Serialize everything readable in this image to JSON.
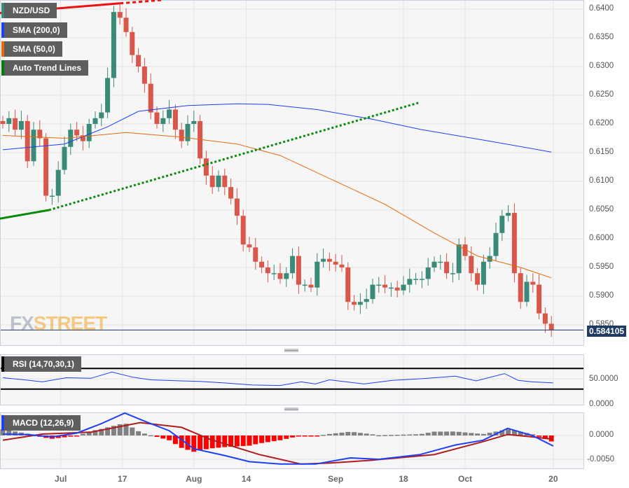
{
  "symbol_label": "NZD/USD",
  "legend": [
    {
      "label": "NZD/USD",
      "color": "#3a8a78"
    },
    {
      "label": "SMA (200,0)",
      "color": "#1f3ff5"
    },
    {
      "label": "SMA (50,0)",
      "color": "#e8680e"
    },
    {
      "label": "Auto Trend Lines",
      "color": "#0a7a0a"
    }
  ],
  "rsi_label": "RSI (14,70,30,1)",
  "macd_label": "MACD (12,26,9)",
  "logo": {
    "a": "FX",
    "b": "STREET"
  },
  "current_price": "0.584105",
  "price_axis": [
    "0.6400",
    "0.6350",
    "0.6300",
    "0.6250",
    "0.6200",
    "0.6150",
    "0.6100",
    "0.6050",
    "0.6000",
    "0.5950",
    "0.5900",
    "0.5850"
  ],
  "rsi_axis": [
    "50.0000",
    "0.0000"
  ],
  "macd_axis": [
    "0.0000",
    "-0.0050"
  ],
  "x_axis": [
    {
      "label": "Jul",
      "idx": 9.4
    },
    {
      "label": "17",
      "idx": 19.4
    },
    {
      "label": "Aug",
      "idx": 31
    },
    {
      "label": "14",
      "idx": 39.5
    },
    {
      "label": "Sep",
      "idx": 54
    },
    {
      "label": "18",
      "idx": 65
    },
    {
      "label": "Oct",
      "idx": 75
    },
    {
      "label": "20",
      "idx": 89.3
    }
  ],
  "colors": {
    "up": "#3a8a78",
    "down": "#d9574a",
    "sma200": "#1f3ff5",
    "sma50": "#e8680e",
    "rsi": "#1f3ff5",
    "macd": "#1f3ff5",
    "signal": "#b01c1c",
    "hist_pos": "#808080",
    "hist_neg": "#ff0000"
  },
  "chart_data": {
    "type": "candlestick",
    "closes": [
      0.62,
      0.621,
      0.619,
      0.6205,
      0.6135,
      0.619,
      0.6175,
      0.6075,
      0.6075,
      0.612,
      0.616,
      0.619,
      0.618,
      0.617,
      0.62,
      0.621,
      0.622,
      0.628,
      0.6395,
      0.6385,
      0.636,
      0.632,
      0.63,
      0.627,
      0.622,
      0.62,
      0.621,
      0.6225,
      0.619,
      0.617,
      0.62,
      0.6205,
      0.614,
      0.611,
      0.609,
      0.611,
      0.609,
      0.607,
      0.604,
      0.599,
      0.5985,
      0.596,
      0.595,
      0.594,
      0.594,
      0.593,
      0.594,
      0.597,
      0.592,
      0.592,
      0.5915,
      0.596,
      0.5965,
      0.596,
      0.5955,
      0.595,
      0.589,
      0.5885,
      0.589,
      0.5895,
      0.592,
      0.592,
      0.5915,
      0.5915,
      0.591,
      0.592,
      0.593,
      0.593,
      0.593,
      0.595,
      0.596,
      0.596,
      0.594,
      0.594,
      0.599,
      0.597,
      0.594,
      0.592,
      0.596,
      0.597,
      0.601,
      0.604,
      0.6045,
      0.594,
      0.589,
      0.5925,
      0.592,
      0.587,
      0.5852,
      0.5841
    ],
    "sma200": [
      [
        0,
        0.6155
      ],
      [
        10,
        0.6165
      ],
      [
        17,
        0.6195
      ],
      [
        22,
        0.6222
      ],
      [
        30,
        0.6232
      ],
      [
        38,
        0.6235
      ],
      [
        43,
        0.6234
      ],
      [
        51,
        0.6225
      ],
      [
        60,
        0.6208
      ],
      [
        68,
        0.619
      ],
      [
        79,
        0.617
      ],
      [
        89,
        0.6151
      ]
    ],
    "sma50": [
      [
        0,
        0.618
      ],
      [
        10,
        0.6175
      ],
      [
        20,
        0.6185
      ],
      [
        29,
        0.6177
      ],
      [
        38,
        0.6165
      ],
      [
        45,
        0.6145
      ],
      [
        53,
        0.6105
      ],
      [
        62,
        0.606
      ],
      [
        70,
        0.601
      ],
      [
        77,
        0.597
      ],
      [
        84,
        0.595
      ],
      [
        89,
        0.5932
      ]
    ],
    "trend_red": {
      "solid": [
        [
          -0.5,
          0.6393
        ],
        [
          19,
          0.641
        ]
      ],
      "dashed": [
        [
          19,
          0.641
        ],
        [
          26,
          0.6416
        ]
      ]
    },
    "trend_green": {
      "solid": [
        [
          -0.5,
          0.6035
        ],
        [
          7.5,
          0.605
        ]
      ],
      "dotted": [
        [
          7.5,
          0.605
        ],
        [
          67.5,
          0.6237
        ]
      ]
    },
    "price_range": [
      0.5815,
      0.6415
    ],
    "rsi": {
      "values": [
        [
          0,
          52
        ],
        [
          3.5,
          48
        ],
        [
          6.4,
          44
        ],
        [
          10.3,
          52
        ],
        [
          14.3,
          51
        ],
        [
          17.7,
          63
        ],
        [
          21.1,
          53
        ],
        [
          24,
          48
        ],
        [
          29,
          46
        ],
        [
          31.9,
          45
        ],
        [
          35.9,
          42
        ],
        [
          40.5,
          38
        ],
        [
          45,
          37
        ],
        [
          48.4,
          44
        ],
        [
          50.7,
          40
        ],
        [
          53,
          48
        ],
        [
          58.6,
          40
        ],
        [
          63.2,
          47
        ],
        [
          67.7,
          50
        ],
        [
          73.4,
          55
        ],
        [
          76.8,
          46
        ],
        [
          81.4,
          60
        ],
        [
          83.6,
          47
        ],
        [
          85.9,
          44
        ],
        [
          89.3,
          42
        ]
      ],
      "upper": 70,
      "lower": 30,
      "range": [
        0,
        100
      ]
    },
    "macd": {
      "macd": [
        [
          0,
          0.0003
        ],
        [
          4,
          0.0002
        ],
        [
          8,
          -0.0003
        ],
        [
          12,
          0.0005
        ],
        [
          16,
          0.0025
        ],
        [
          19.8,
          0.0047
        ],
        [
          23,
          0.003
        ],
        [
          27,
          0.001
        ],
        [
          31,
          -0.0028
        ],
        [
          36,
          -0.0042
        ],
        [
          40,
          -0.0055
        ],
        [
          45,
          -0.006
        ],
        [
          50.7,
          -0.006
        ],
        [
          56.4,
          -0.0047
        ],
        [
          61,
          -0.005
        ],
        [
          67.7,
          -0.004
        ],
        [
          73.4,
          -0.002
        ],
        [
          77.9,
          -0.001
        ],
        [
          81.9,
          0.0015
        ],
        [
          85.9,
          0.0
        ],
        [
          89.3,
          -0.0022
        ]
      ],
      "signal": [
        [
          0,
          -0.001
        ],
        [
          6.4,
          0.0003
        ],
        [
          14.3,
          0.0007
        ],
        [
          22.3,
          0.0027
        ],
        [
          29,
          0.0017
        ],
        [
          33.6,
          -0.0008
        ],
        [
          41.6,
          -0.004
        ],
        [
          48.4,
          -0.006
        ],
        [
          53,
          -0.0058
        ],
        [
          59.8,
          -0.0052
        ],
        [
          70,
          -0.004
        ],
        [
          77.9,
          -0.0013
        ],
        [
          81.9,
          0.0002
        ],
        [
          85.9,
          -0.0003
        ],
        [
          89.3,
          -0.0008
        ]
      ],
      "range": [
        -0.0068,
        0.005
      ]
    }
  }
}
